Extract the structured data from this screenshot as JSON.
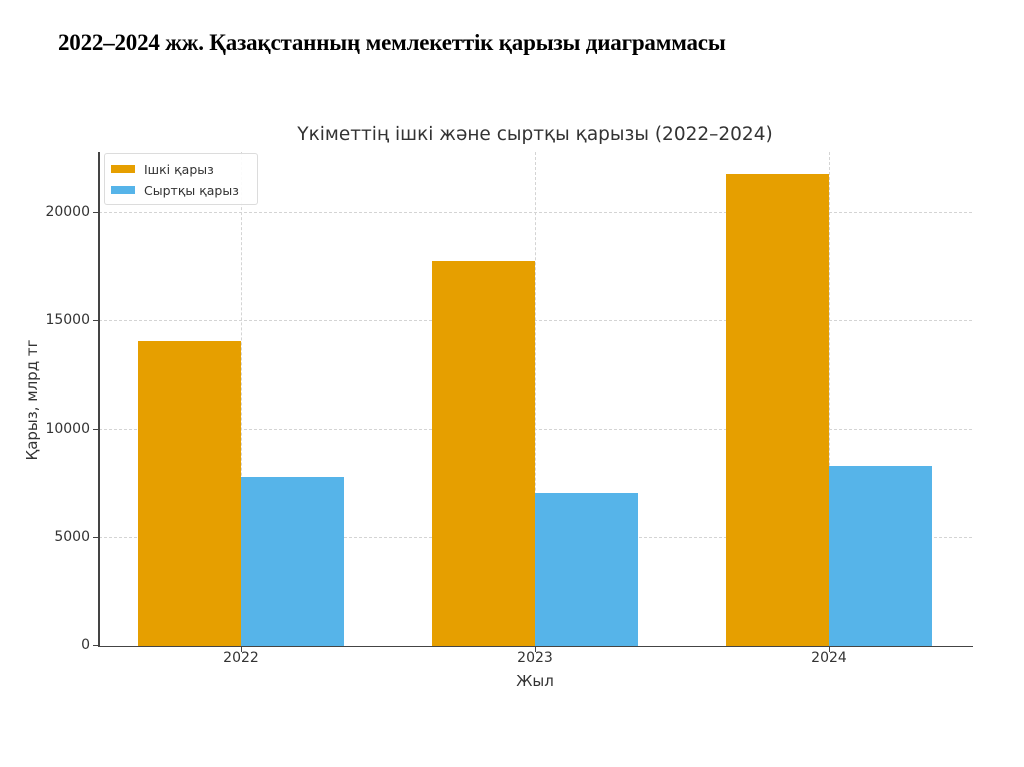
{
  "page": {
    "title": "2022–2024 жж. Қазақстанның мемлекеттік қарызы диаграммасы"
  },
  "colors": {
    "inner_debt": "#E69F00",
    "external_debt": "#56B4E9",
    "axis": "#444444",
    "grid": "#D4D4D4",
    "text": "#333333"
  },
  "chart_data": {
    "type": "bar",
    "title": "Үкіметтің ішкі және сыртқы қарызы (2022–2024)",
    "xlabel": "Жыл",
    "ylabel": "Қарыз, млрд тг",
    "categories": [
      "2022",
      "2023",
      "2024"
    ],
    "series": [
      {
        "name": "Ішкі қарыз",
        "color": "#E69F00",
        "values": [
          14100,
          17800,
          21800
        ]
      },
      {
        "name": "Сыртқы қарыз",
        "color": "#56B4E9",
        "values": [
          7800,
          7050,
          8300
        ]
      }
    ],
    "ylim": [
      0,
      22800
    ],
    "yticks": [
      "0",
      "5000",
      "10000",
      "15000",
      "20000"
    ],
    "ytick_values": [
      0,
      5000,
      10000,
      15000,
      20000
    ],
    "grid": true,
    "grid_style": "dashed",
    "legend_position": "upper left"
  }
}
